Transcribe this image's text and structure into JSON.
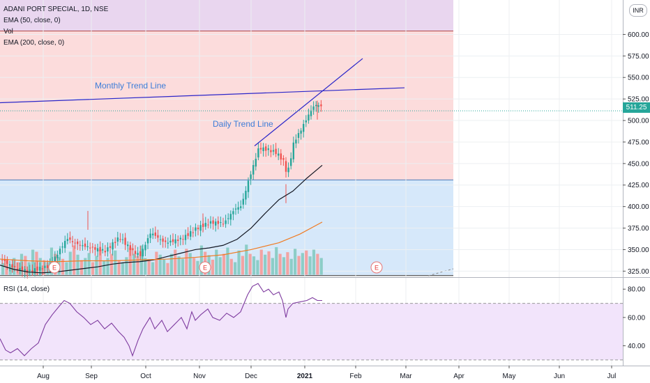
{
  "chart_data": {
    "type": "candlestick",
    "legend": {
      "symbol": "ADANI PORT SPECIAL, 1D, NSE",
      "ema50": "EMA (50, close, 0)",
      "vol": "Vol",
      "ema200": "EMA (200, close, 0)",
      "rsi": "RSI (14, close)"
    },
    "currency": "INR",
    "last_price": "511.25",
    "price_axis": {
      "ticks": [
        "600.00",
        "575.00",
        "550.00",
        "525.00",
        "500.00",
        "475.00",
        "450.00",
        "425.00",
        "400.00",
        "375.00",
        "350.00",
        "325.00"
      ],
      "ylim": [
        318,
        640
      ]
    },
    "rsi_axis": {
      "ticks": [
        "80.00",
        "60.00",
        "40.00"
      ],
      "ylim": [
        27,
        87
      ],
      "overbought": 70,
      "oversold": 30
    },
    "time_axis": {
      "ticks": [
        "Aug",
        "Sep",
        "Oct",
        "Nov",
        "Dec",
        "2021",
        "Feb",
        "Mar",
        "Apr",
        "May",
        "Jun",
        "Jul"
      ]
    },
    "annotations": {
      "monthly_trend_label": "Monthly Trend Line",
      "daily_trend_label": "Daily Trend Line",
      "earnings_marker": "E"
    },
    "zones": {
      "purple_top": [
        604,
        640
      ],
      "red_band": [
        431,
        604
      ],
      "blue_band": [
        320,
        431
      ]
    },
    "monthly_trend": [
      [
        -5,
        520.5
      ],
      [
        580,
        538
      ]
    ],
    "daily_trend": [
      [
        365,
        470.5
      ],
      [
        520,
        572
      ]
    ],
    "anchor_points": [
      [
        0,
        340
      ],
      [
        20,
        327
      ],
      [
        40,
        322
      ],
      [
        70,
        330
      ],
      [
        95,
        365
      ],
      [
        105,
        360
      ],
      [
        125,
        355
      ],
      [
        150,
        348
      ],
      [
        170,
        362
      ],
      [
        190,
        345
      ],
      [
        200,
        342
      ],
      [
        215,
        370
      ],
      [
        235,
        360
      ],
      [
        260,
        365
      ],
      [
        280,
        375
      ],
      [
        300,
        380
      ],
      [
        320,
        378
      ],
      [
        335,
        395
      ],
      [
        345,
        400
      ],
      [
        355,
        430
      ],
      [
        362,
        448
      ],
      [
        370,
        470
      ],
      [
        385,
        468
      ],
      [
        395,
        465
      ],
      [
        405,
        455
      ],
      [
        410,
        440
      ],
      [
        413,
        446
      ],
      [
        420,
        475
      ],
      [
        430,
        488
      ],
      [
        440,
        503
      ],
      [
        450,
        516
      ],
      [
        458,
        515
      ],
      [
        462,
        511.25
      ]
    ],
    "ema50": [
      [
        0,
        332
      ],
      [
        20,
        327
      ],
      [
        40,
        324
      ],
      [
        60,
        323
      ],
      [
        80,
        324
      ],
      [
        100,
        326
      ],
      [
        120,
        328
      ],
      [
        140,
        330
      ],
      [
        160,
        333
      ],
      [
        180,
        335
      ],
      [
        200,
        336
      ],
      [
        220,
        338
      ],
      [
        240,
        342
      ],
      [
        260,
        346
      ],
      [
        280,
        350
      ],
      [
        300,
        352
      ],
      [
        320,
        355
      ],
      [
        340,
        362
      ],
      [
        360,
        375
      ],
      [
        380,
        392
      ],
      [
        400,
        408
      ],
      [
        420,
        418
      ],
      [
        440,
        433
      ],
      [
        462,
        448
      ]
    ],
    "ema200": [
      [
        0,
        339
      ],
      [
        40,
        337
      ],
      [
        80,
        336
      ],
      [
        120,
        337
      ],
      [
        160,
        337
      ],
      [
        200,
        338
      ],
      [
        240,
        339
      ],
      [
        280,
        341
      ],
      [
        320,
        344
      ],
      [
        360,
        350
      ],
      [
        400,
        358
      ],
      [
        430,
        368
      ],
      [
        462,
        382
      ]
    ],
    "volume_level": [
      0.28,
      0.35,
      0.22,
      0.4,
      0.3,
      0.5,
      0.45,
      0.3,
      0.6,
      0.55,
      0.4,
      0.35,
      0.3,
      0.65,
      0.5,
      0.42,
      0.38,
      0.3,
      0.55,
      0.7,
      0.48,
      0.35,
      0.4,
      0.52,
      0.3,
      0.45,
      0.6,
      0.33,
      0.4,
      0.5,
      0.58,
      0.35,
      0.3,
      0.42,
      0.65,
      0.5,
      0.45,
      0.7,
      0.4,
      0.35,
      0.3,
      0.55,
      0.48,
      0.36,
      0.28,
      0.5,
      0.6,
      0.44,
      0.38,
      0.62,
      0.52,
      0.4,
      0.33,
      0.7,
      0.55,
      0.47,
      0.36,
      0.6,
      0.42,
      0.5,
      0.65,
      0.38,
      0.3,
      0.58,
      0.45,
      0.72,
      0.5,
      0.44,
      0.35,
      0.6,
      0.48,
      0.56,
      0.4,
      0.66,
      0.5,
      0.42,
      0.54,
      0.38,
      0.62,
      0.45,
      0.52,
      0.58,
      0.44,
      0.6,
      0.5,
      0.4
    ],
    "rsi": [
      [
        0,
        45
      ],
      [
        8,
        37
      ],
      [
        15,
        35
      ],
      [
        25,
        38
      ],
      [
        35,
        33
      ],
      [
        45,
        38
      ],
      [
        55,
        42
      ],
      [
        65,
        55
      ],
      [
        75,
        62
      ],
      [
        85,
        68
      ],
      [
        92,
        72
      ],
      [
        100,
        70
      ],
      [
        110,
        64
      ],
      [
        120,
        60
      ],
      [
        130,
        55
      ],
      [
        140,
        58
      ],
      [
        150,
        52
      ],
      [
        160,
        56
      ],
      [
        170,
        50
      ],
      [
        178,
        46
      ],
      [
        185,
        40
      ],
      [
        190,
        33
      ],
      [
        198,
        44
      ],
      [
        205,
        52
      ],
      [
        215,
        60
      ],
      [
        222,
        52
      ],
      [
        232,
        58
      ],
      [
        240,
        50
      ],
      [
        250,
        55
      ],
      [
        260,
        60
      ],
      [
        268,
        52
      ],
      [
        275,
        64
      ],
      [
        280,
        58
      ],
      [
        288,
        62
      ],
      [
        298,
        66
      ],
      [
        305,
        60
      ],
      [
        315,
        58
      ],
      [
        325,
        63
      ],
      [
        335,
        60
      ],
      [
        345,
        64
      ],
      [
        355,
        76
      ],
      [
        362,
        82
      ],
      [
        370,
        84
      ],
      [
        378,
        78
      ],
      [
        385,
        80
      ],
      [
        392,
        76
      ],
      [
        400,
        78
      ],
      [
        405,
        72
      ],
      [
        410,
        60
      ],
      [
        413,
        66
      ],
      [
        420,
        70
      ],
      [
        430,
        71
      ],
      [
        440,
        72
      ],
      [
        448,
        74
      ],
      [
        455,
        72
      ],
      [
        462,
        72
      ]
    ]
  }
}
